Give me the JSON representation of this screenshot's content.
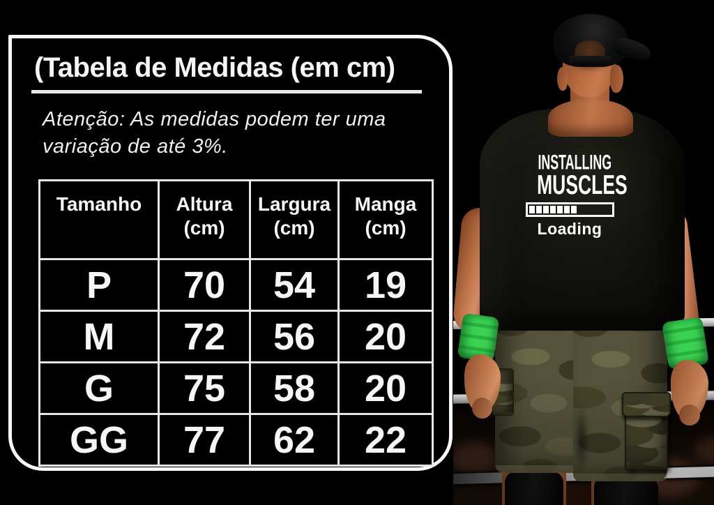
{
  "chart_data": {
    "type": "table",
    "title": "(Tabela de Medidas (em cm)",
    "note": "Atenção: As medidas podem ter uma variação de até 3%.",
    "columns": [
      "Tamanho",
      "Altura (cm)",
      "Largura (cm)",
      "Manga (cm)"
    ],
    "rows": [
      [
        "P",
        70,
        54,
        19
      ],
      [
        "M",
        72,
        56,
        20
      ],
      [
        "G",
        75,
        58,
        20
      ],
      [
        "GG",
        77,
        62,
        22
      ]
    ]
  },
  "panel": {
    "title": "(Tabela de Medidas (em cm)",
    "note_line1": "Atenção: As medidas podem ter uma",
    "note_line2": "variação de até 3%.",
    "table": {
      "headers": [
        {
          "label": "Tamanho",
          "unit": ""
        },
        {
          "label": "Altura",
          "unit": "(cm)"
        },
        {
          "label": "Largura",
          "unit": "(cm)"
        },
        {
          "label": "Manga",
          "unit": "(cm)"
        }
      ],
      "rows": [
        [
          "P",
          "70",
          "54",
          "19"
        ],
        [
          "M",
          "72",
          "56",
          "20"
        ],
        [
          "G",
          "75",
          "58",
          "20"
        ],
        [
          "GG",
          "77",
          "62",
          "22"
        ]
      ]
    }
  },
  "photo": {
    "shirt_print": {
      "line1": "INSTALLING",
      "line2": "MUSCLES",
      "loading_label": "Loading",
      "progress_filled": 7,
      "progress_total": 13
    },
    "colors": {
      "wristband_green": "#3bd253",
      "skin": "#c1754a",
      "camo_base": "#54523a",
      "shirt_black": "#131310",
      "rope_gray": "#d9d9d9"
    }
  }
}
